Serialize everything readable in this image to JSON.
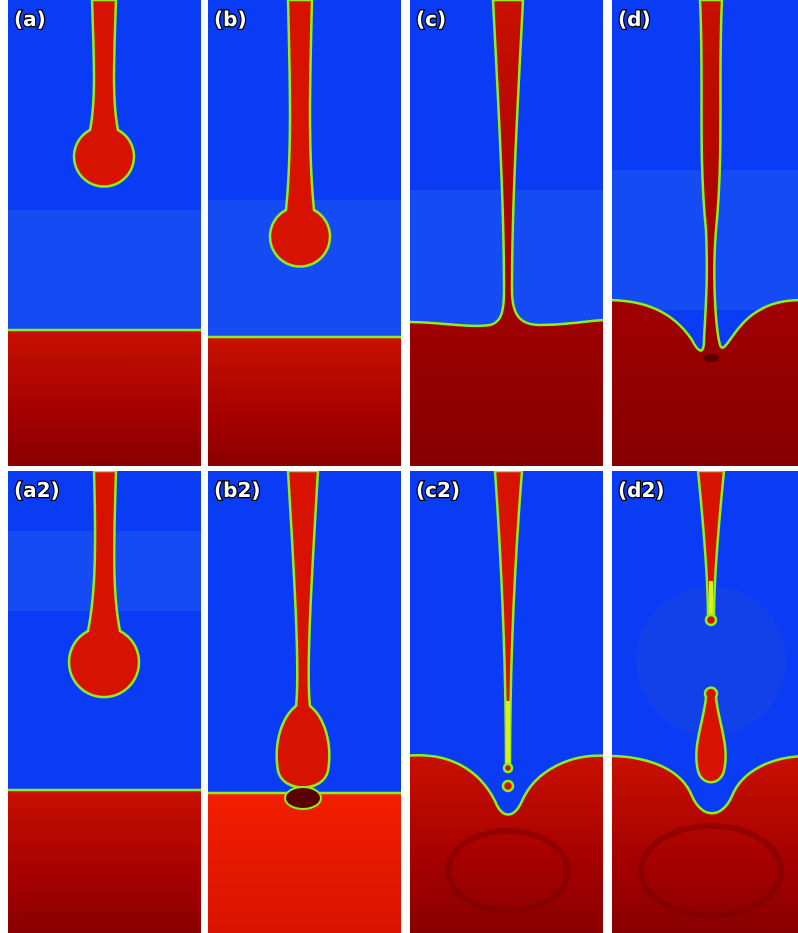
{
  "panels": [
    {
      "label": "(a)"
    },
    {
      "label": "(b)"
    },
    {
      "label": "(c)"
    },
    {
      "label": "(d)"
    },
    {
      "label": "(a2)"
    },
    {
      "label": "(b2)"
    },
    {
      "label": "(c2)"
    },
    {
      "label": "(d2)"
    }
  ]
}
